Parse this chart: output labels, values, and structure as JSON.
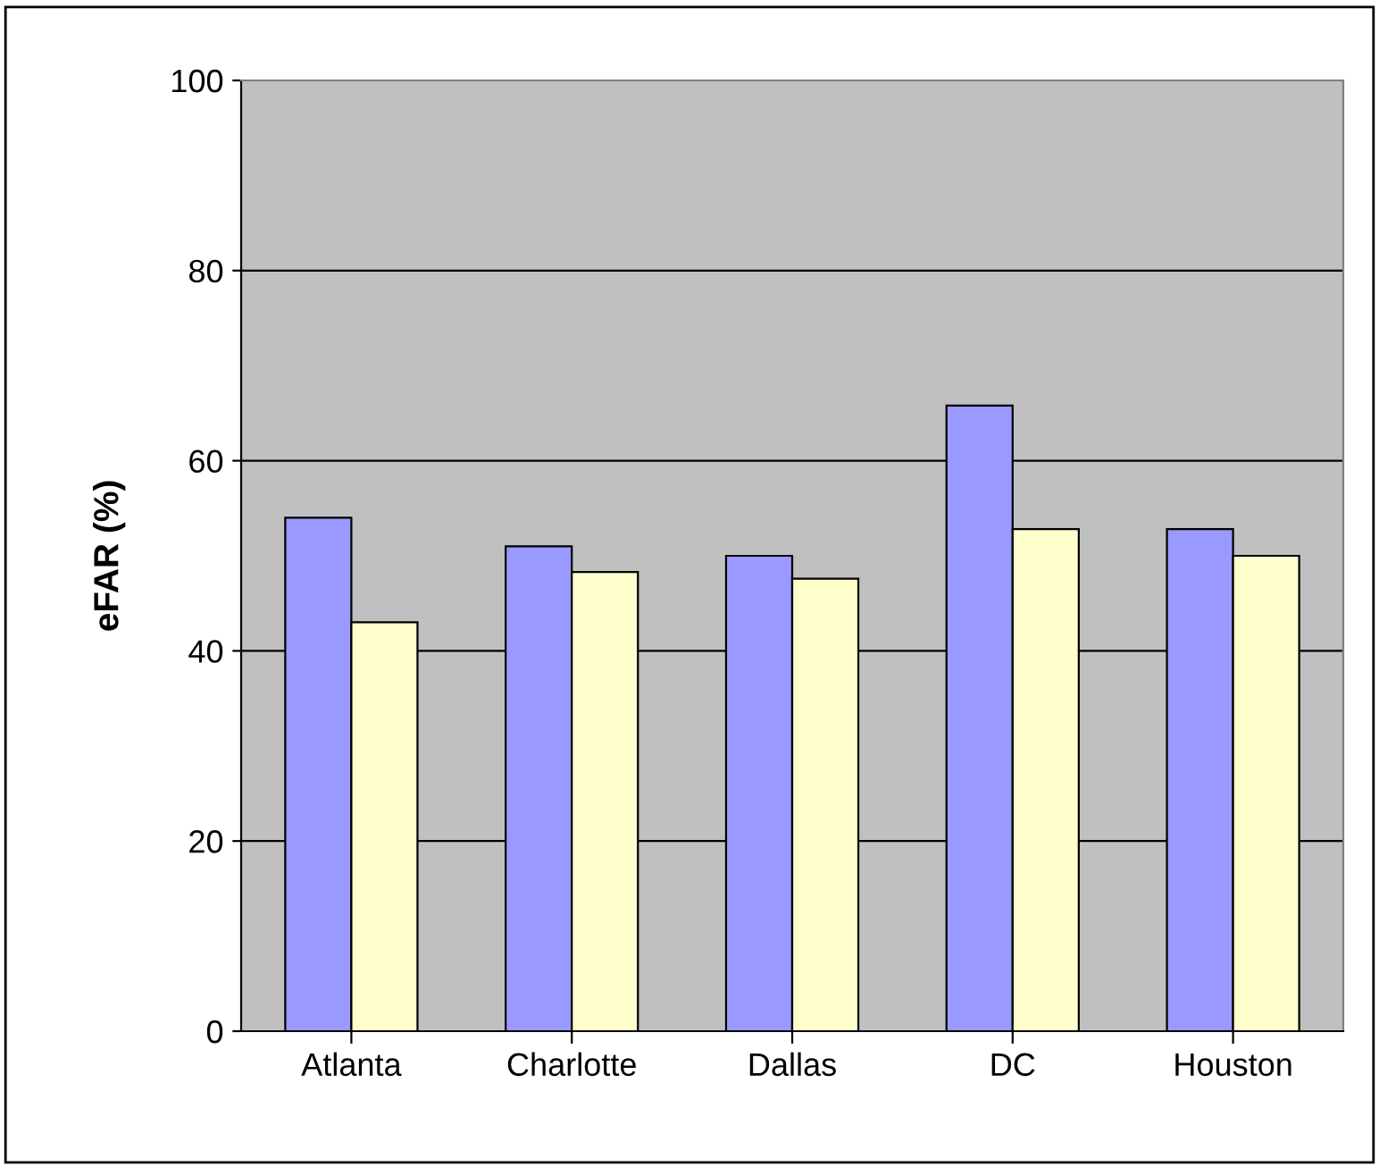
{
  "chart_data": {
    "type": "bar",
    "ylabel": "eFAR (%)",
    "categories": [
      "Atlanta",
      "Charlotte",
      "Dallas",
      "DC",
      "Houston"
    ],
    "series": [
      {
        "color": "#9999ff",
        "values": [
          54,
          51,
          50,
          65.8,
          52.8
        ]
      },
      {
        "color": "#ffffcc",
        "values": [
          43,
          48.3,
          47.6,
          52.8,
          50
        ]
      }
    ],
    "ylim": [
      0,
      100
    ],
    "yticks": [
      0,
      20,
      40,
      60,
      80,
      100
    ],
    "grid": "y"
  }
}
